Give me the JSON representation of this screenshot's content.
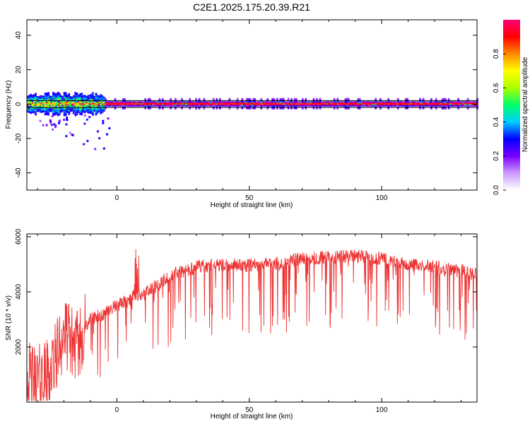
{
  "title": "C2E1.2025.175.20.39.R21",
  "chart_data": [
    {
      "type": "heatmap",
      "xlabel": "Height of straight line (km)",
      "ylabel": "Frequency (Hz)",
      "xlim": [
        -34,
        136
      ],
      "ylim": [
        -50,
        49
      ],
      "xticks": [
        0,
        50,
        100
      ],
      "yticks": [
        -40,
        -20,
        0,
        20,
        40
      ],
      "center_band": [
        -2,
        2
      ],
      "colorbar": {
        "label": "Normalized spectral amplitude",
        "range": [
          0,
          1
        ],
        "ticks": [
          "0.0",
          "0.2",
          "0.4",
          "0.6",
          "0.8"
        ],
        "tick_values": [
          0,
          0.2,
          0.4,
          0.6,
          0.8
        ],
        "colors": [
          "#ffffff",
          "#cc99ff",
          "#7a00ff",
          "#0000ff",
          "#00ccff",
          "#00ff66",
          "#aaff00",
          "#ffff00",
          "#ff8800",
          "#ff0000",
          "#ff0077"
        ]
      },
      "grid": false
    },
    {
      "type": "line",
      "xlabel": "Height of straight line (km)",
      "ylabel": "SNR (10 * v/v)",
      "xlim": [
        -34,
        136
      ],
      "ylim": [
        0,
        6100
      ],
      "xticks": [
        0,
        50,
        100
      ],
      "yticks": [
        2000,
        4000,
        6000
      ],
      "color": "#ee3333",
      "trend": {
        "x": [
          -34,
          -30,
          -25,
          -20,
          -15,
          -12,
          -10,
          -5,
          0,
          5,
          7,
          10,
          15,
          20,
          30,
          40,
          50,
          60,
          70,
          80,
          90,
          100,
          110,
          120,
          130,
          136
        ],
        "y": [
          900,
          800,
          1100,
          2500,
          2000,
          2700,
          3000,
          3200,
          3500,
          3700,
          3900,
          3900,
          4200,
          4600,
          4900,
          5000,
          4950,
          5050,
          5200,
          5250,
          5300,
          5200,
          5000,
          4900,
          4800,
          4600
        ]
      },
      "grid": false
    }
  ]
}
